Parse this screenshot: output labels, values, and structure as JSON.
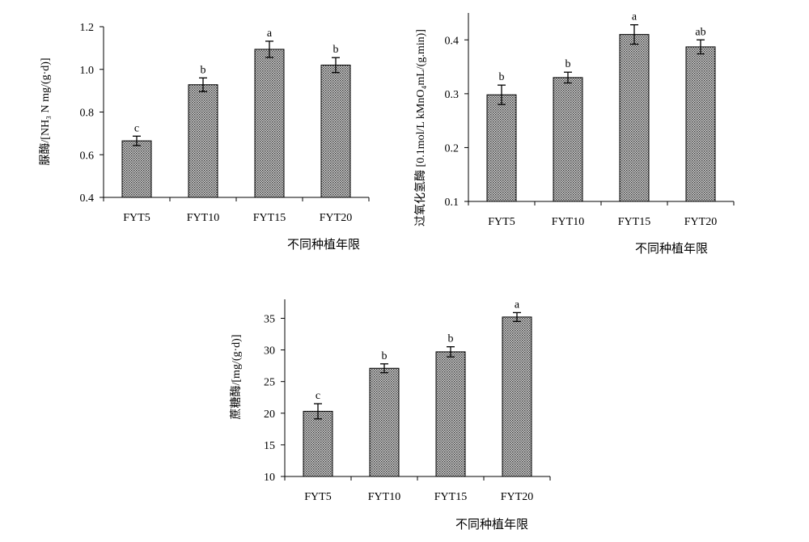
{
  "chart_data": [
    {
      "type": "bar",
      "ylabel": "脲酶/[NH₃ N mg/(g·d)]",
      "xlabel": "不同种植年限",
      "categories": [
        "FYT5",
        "FYT10",
        "FYT15",
        "FYT20"
      ],
      "values": [
        0.665,
        0.928,
        1.094,
        1.02
      ],
      "errors": [
        0.022,
        0.032,
        0.038,
        0.035
      ],
      "sig_labels": [
        "c",
        "b",
        "a",
        "b"
      ],
      "ylim": [
        0.4,
        1.2
      ],
      "yticks": [
        "0.4",
        "0.6",
        "0.8",
        "1.0",
        "1.2"
      ]
    },
    {
      "type": "bar",
      "ylabel": "过氧化氢酶 [0.1mol/L kMnO₄mL/(g.min)]",
      "xlabel": "不同种植年限",
      "categories": [
        "FYT5",
        "FYT10",
        "FYT15",
        "FYT20"
      ],
      "values": [
        0.298,
        0.33,
        0.41,
        0.387
      ],
      "errors": [
        0.018,
        0.01,
        0.018,
        0.013
      ],
      "sig_labels": [
        "b",
        "b",
        "a",
        "ab"
      ],
      "ylim": [
        0.1,
        0.45
      ],
      "yticks": [
        "0.1",
        "0.2",
        "0.3",
        "0.4"
      ]
    },
    {
      "type": "bar",
      "ylabel": "蔗糖酶/[mg/(g·d)]",
      "xlabel": "不同种植年限",
      "categories": [
        "FYT5",
        "FYT10",
        "FYT15",
        "FYT20"
      ],
      "values": [
        20.3,
        27.1,
        29.7,
        35.2
      ],
      "errors": [
        1.2,
        0.7,
        0.8,
        0.7
      ],
      "sig_labels": [
        "c",
        "b",
        "b",
        "a"
      ],
      "ylim": [
        10,
        38
      ],
      "yticks": [
        "10",
        "15",
        "20",
        "25",
        "30",
        "35"
      ]
    }
  ]
}
